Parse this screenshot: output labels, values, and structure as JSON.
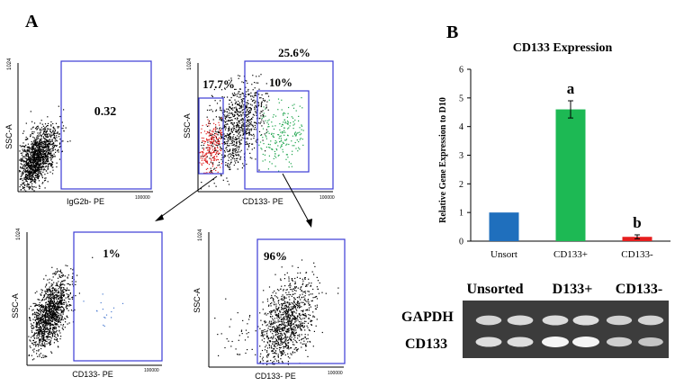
{
  "panel_a": {
    "label": "A",
    "plots": [
      {
        "id": "iso",
        "y_label": "SSC-A",
        "y_top_tick": "1024",
        "x_label": "IgG2b- PE",
        "x_end_tick": "100000",
        "gate_labels": [
          "0.32"
        ]
      },
      {
        "id": "cd133",
        "y_label": "SSC-A",
        "y_top_tick": "1024",
        "x_label": "CD133- PE",
        "x_end_tick": "100000",
        "gate_labels": [
          "25.6%",
          "17.7%",
          "10%"
        ]
      },
      {
        "id": "neg",
        "y_label": "SSC-A",
        "y_top_tick": "1024",
        "x_label": "CD133- PE",
        "x_end_tick": "100000",
        "gate_labels": [
          "1%"
        ]
      },
      {
        "id": "pos",
        "y_label": "SSC-A",
        "y_top_tick": "1024",
        "x_label": "CD133- PE",
        "x_end_tick": "100000",
        "gate_labels": [
          "96%"
        ]
      }
    ]
  },
  "panel_b": {
    "label": "B",
    "gel": {
      "columns": [
        "Unsorted",
        "D133+",
        "CD133-"
      ],
      "rows": [
        "GAPDH",
        "CD133"
      ],
      "band_intensity": {
        "GAPDH": [
          0.75,
          0.78,
          0.8,
          0.82,
          0.72,
          0.74
        ],
        "CD133": [
          0.82,
          0.82,
          1.0,
          1.0,
          0.7,
          0.62
        ]
      }
    }
  },
  "chart_data": {
    "type": "bar",
    "title": "CD133 Expression",
    "ylabel": "Relative Gene Expression to D10",
    "xlabel": "",
    "categories": [
      "Unsort",
      "CD133+",
      "CD133-"
    ],
    "values": [
      1.0,
      4.6,
      0.15
    ],
    "errors": [
      0,
      0.3,
      0.07
    ],
    "colors": [
      "#1f6fbd",
      "#1db954",
      "#e61e1e"
    ],
    "bar_labels": [
      "",
      "a",
      "b"
    ],
    "ylim": [
      0,
      6
    ],
    "yticks": [
      0,
      1,
      2,
      3,
      4,
      5,
      6
    ],
    "grid": false,
    "legend": "none"
  }
}
